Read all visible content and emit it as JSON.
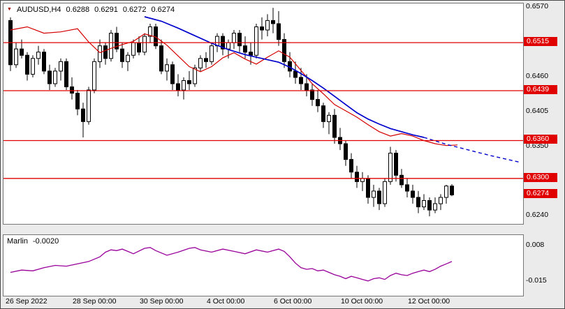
{
  "header": {
    "symbol": "AUDUSD,H4",
    "open": "0.6288",
    "high": "0.6291",
    "low": "0.6272",
    "close": "0.6274"
  },
  "indicator_label": {
    "name": "Marlin",
    "value": "-0.0020"
  },
  "colors": {
    "level_line": "#e00000",
    "ma_fast": "#d40000",
    "ma_slow": "#0000cd",
    "indicator_line": "#990099",
    "candle_up": "#ffffff",
    "candle_down": "#000000",
    "candle_outline": "#000000",
    "axis_box_bg": "#e00000",
    "axis_box_text": "#ffffff",
    "marker": "#a00000"
  },
  "chart_data": {
    "type": "candlestick",
    "symbol": "AUDUSD",
    "timeframe": "H4",
    "current_bar": {
      "open": 0.6288,
      "high": 0.6291,
      "low": 0.6272,
      "close": 0.6274
    },
    "y_axis": {
      "min": 0.6228,
      "max": 0.6577,
      "plain_ticks": [
        {
          "price": 0.657,
          "label": "0.6570"
        },
        {
          "price": 0.646,
          "label": "0.6460"
        },
        {
          "price": 0.6405,
          "label": "0.6405"
        },
        {
          "price": 0.635,
          "label": "0.6350"
        },
        {
          "price": 0.624,
          "label": "0.6240"
        }
      ]
    },
    "levels": [
      {
        "price": 0.6515,
        "label": "0.6515"
      },
      {
        "price": 0.6439,
        "label": "0.6439"
      },
      {
        "price": 0.636,
        "label": "0.6360"
      },
      {
        "price": 0.63,
        "label": "0.6300"
      }
    ],
    "bid": {
      "price": 0.6274,
      "label": "0.6274"
    },
    "x_labels": [
      {
        "i": 0,
        "label": "26 Sep 2022"
      },
      {
        "i": 12,
        "label": "28 Sep 00:00"
      },
      {
        "i": 24,
        "label": "30 Sep 00:00"
      },
      {
        "i": 36,
        "label": "4 Oct 00:00"
      },
      {
        "i": 48,
        "label": "6 Oct 00:00"
      },
      {
        "i": 60,
        "label": "10 Oct 00:00"
      },
      {
        "i": 72,
        "label": "12 Oct 00:00"
      }
    ],
    "candles": [
      [
        0.655,
        0.6555,
        0.647,
        0.648
      ],
      [
        0.648,
        0.6515,
        0.6475,
        0.6505
      ],
      [
        0.6505,
        0.652,
        0.649,
        0.6495
      ],
      [
        0.6495,
        0.65,
        0.6455,
        0.6465
      ],
      [
        0.6465,
        0.6495,
        0.646,
        0.649
      ],
      [
        0.649,
        0.651,
        0.648,
        0.65
      ],
      [
        0.65,
        0.6505,
        0.6465,
        0.647
      ],
      [
        0.647,
        0.648,
        0.644,
        0.645
      ],
      [
        0.645,
        0.6475,
        0.6445,
        0.647
      ],
      [
        0.647,
        0.649,
        0.6455,
        0.6485
      ],
      [
        0.6485,
        0.649,
        0.644,
        0.6445
      ],
      [
        0.6445,
        0.646,
        0.6425,
        0.6435
      ],
      [
        0.6435,
        0.644,
        0.64,
        0.641
      ],
      [
        0.641,
        0.642,
        0.6365,
        0.639
      ],
      [
        0.639,
        0.6445,
        0.6385,
        0.644
      ],
      [
        0.644,
        0.649,
        0.6435,
        0.6485
      ],
      [
        0.6485,
        0.652,
        0.6475,
        0.651
      ],
      [
        0.651,
        0.6515,
        0.648,
        0.649
      ],
      [
        0.649,
        0.6535,
        0.6485,
        0.653
      ],
      [
        0.653,
        0.654,
        0.65,
        0.6505
      ],
      [
        0.6505,
        0.6515,
        0.6475,
        0.6485
      ],
      [
        0.6485,
        0.65,
        0.647,
        0.6495
      ],
      [
        0.6495,
        0.652,
        0.649,
        0.6515
      ],
      [
        0.6515,
        0.6525,
        0.6495,
        0.65
      ],
      [
        0.65,
        0.653,
        0.6495,
        0.6525
      ],
      [
        0.6525,
        0.6545,
        0.6515,
        0.654
      ],
      [
        0.654,
        0.6545,
        0.6505,
        0.651
      ],
      [
        0.651,
        0.652,
        0.6465,
        0.647
      ],
      [
        0.647,
        0.649,
        0.6455,
        0.648
      ],
      [
        0.648,
        0.6485,
        0.644,
        0.645
      ],
      [
        0.645,
        0.6465,
        0.643,
        0.644
      ],
      [
        0.644,
        0.646,
        0.6425,
        0.6455
      ],
      [
        0.6455,
        0.647,
        0.644,
        0.645
      ],
      [
        0.645,
        0.648,
        0.6445,
        0.6475
      ],
      [
        0.6475,
        0.6495,
        0.647,
        0.649
      ],
      [
        0.649,
        0.65,
        0.6475,
        0.6485
      ],
      [
        0.6485,
        0.6515,
        0.648,
        0.651
      ],
      [
        0.651,
        0.653,
        0.65,
        0.6525
      ],
      [
        0.6525,
        0.653,
        0.6495,
        0.6505
      ],
      [
        0.6505,
        0.652,
        0.649,
        0.6515
      ],
      [
        0.6515,
        0.6535,
        0.6505,
        0.653
      ],
      [
        0.653,
        0.6535,
        0.65,
        0.651
      ],
      [
        0.651,
        0.6525,
        0.649,
        0.65
      ],
      [
        0.65,
        0.6515,
        0.648,
        0.6495
      ],
      [
        0.6495,
        0.6545,
        0.649,
        0.654
      ],
      [
        0.654,
        0.6555,
        0.652,
        0.6535
      ],
      [
        0.6535,
        0.656,
        0.6525,
        0.655
      ],
      [
        0.655,
        0.657,
        0.653,
        0.6545
      ],
      [
        0.6545,
        0.6565,
        0.651,
        0.652
      ],
      [
        0.652,
        0.653,
        0.6475,
        0.6485
      ],
      [
        0.6485,
        0.65,
        0.646,
        0.647
      ],
      [
        0.647,
        0.6485,
        0.645,
        0.646
      ],
      [
        0.646,
        0.6475,
        0.644,
        0.645
      ],
      [
        0.645,
        0.6465,
        0.643,
        0.644
      ],
      [
        0.644,
        0.645,
        0.6415,
        0.6425
      ],
      [
        0.6425,
        0.644,
        0.6405,
        0.6415
      ],
      [
        0.6415,
        0.642,
        0.638,
        0.639
      ],
      [
        0.639,
        0.6405,
        0.637,
        0.64
      ],
      [
        0.64,
        0.641,
        0.6355,
        0.6365
      ],
      [
        0.6365,
        0.638,
        0.6345,
        0.6355
      ],
      [
        0.6355,
        0.636,
        0.632,
        0.633
      ],
      [
        0.633,
        0.634,
        0.63,
        0.631
      ],
      [
        0.631,
        0.632,
        0.6285,
        0.6295
      ],
      [
        0.6295,
        0.631,
        0.628,
        0.63
      ],
      [
        0.63,
        0.6305,
        0.626,
        0.627
      ],
      [
        0.627,
        0.629,
        0.6255,
        0.628
      ],
      [
        0.628,
        0.6285,
        0.625,
        0.626
      ],
      [
        0.626,
        0.63,
        0.6255,
        0.6295
      ],
      [
        0.6295,
        0.635,
        0.629,
        0.634
      ],
      [
        0.634,
        0.6345,
        0.6295,
        0.6305
      ],
      [
        0.6305,
        0.6315,
        0.6285,
        0.629
      ],
      [
        0.629,
        0.63,
        0.627,
        0.628
      ],
      [
        0.628,
        0.629,
        0.626,
        0.627
      ],
      [
        0.627,
        0.628,
        0.6245,
        0.6255
      ],
      [
        0.6255,
        0.6275,
        0.625,
        0.6265
      ],
      [
        0.6265,
        0.627,
        0.624,
        0.625
      ],
      [
        0.625,
        0.627,
        0.6245,
        0.626
      ],
      [
        0.626,
        0.6275,
        0.625,
        0.627
      ],
      [
        0.627,
        0.629,
        0.626,
        0.6288
      ],
      [
        0.6288,
        0.6291,
        0.6272,
        0.6274
      ]
    ],
    "ma_slow_blue": [
      [
        24,
        0.6556
      ],
      [
        27,
        0.6549
      ],
      [
        30,
        0.6538
      ],
      [
        33,
        0.6526
      ],
      [
        36,
        0.6514
      ],
      [
        39,
        0.6504
      ],
      [
        42,
        0.6496
      ],
      [
        45,
        0.649
      ],
      [
        48,
        0.6484
      ],
      [
        50,
        0.6476
      ],
      [
        52,
        0.6466
      ],
      [
        54,
        0.6455
      ],
      [
        56,
        0.6443
      ],
      [
        58,
        0.643
      ],
      [
        60,
        0.6417
      ],
      [
        62,
        0.6404
      ],
      [
        64,
        0.6394
      ],
      [
        66,
        0.6386
      ],
      [
        68,
        0.6379
      ],
      [
        70,
        0.6374
      ],
      [
        72,
        0.6369
      ],
      [
        74,
        0.6365
      ]
    ],
    "ma_slow_blue_projection": [
      [
        74,
        0.6365
      ],
      [
        78,
        0.6354
      ],
      [
        82,
        0.6345
      ],
      [
        86,
        0.6336
      ],
      [
        91,
        0.6326
      ]
    ],
    "ma_fast_red": [
      [
        0,
        0.6535
      ],
      [
        3,
        0.654
      ],
      [
        6,
        0.653
      ],
      [
        9,
        0.6532
      ],
      [
        12,
        0.6537
      ],
      [
        14,
        0.6516
      ],
      [
        16,
        0.6499
      ],
      [
        18,
        0.6506
      ],
      [
        20,
        0.6512
      ],
      [
        22,
        0.6517
      ],
      [
        24,
        0.6529
      ],
      [
        26,
        0.6524
      ],
      [
        28,
        0.6511
      ],
      [
        30,
        0.6494
      ],
      [
        32,
        0.6477
      ],
      [
        34,
        0.6469
      ],
      [
        36,
        0.6477
      ],
      [
        38,
        0.6491
      ],
      [
        40,
        0.6499
      ],
      [
        42,
        0.6489
      ],
      [
        44,
        0.6481
      ],
      [
        46,
        0.6492
      ],
      [
        48,
        0.6502
      ],
      [
        50,
        0.6492
      ],
      [
        52,
        0.6471
      ],
      [
        54,
        0.645
      ],
      [
        56,
        0.6434
      ],
      [
        58,
        0.6417
      ],
      [
        60,
        0.6407
      ],
      [
        62,
        0.6397
      ],
      [
        64,
        0.6385
      ],
      [
        66,
        0.6374
      ],
      [
        68,
        0.6367
      ],
      [
        70,
        0.6371
      ],
      [
        72,
        0.6367
      ],
      [
        74,
        0.636
      ],
      [
        76,
        0.6355
      ],
      [
        78,
        0.6352
      ],
      [
        80,
        0.6353
      ]
    ],
    "indicator": {
      "name": "Marlin",
      "current": -0.002,
      "axis": {
        "min": -0.024,
        "max": 0.015
      },
      "ticks": [
        {
          "value": 0.008,
          "label": "0.008"
        },
        {
          "value": -0.015,
          "label": "-0.015"
        }
      ],
      "points": [
        [
          0,
          -0.009
        ],
        [
          2,
          -0.0075
        ],
        [
          4,
          -0.008
        ],
        [
          6,
          -0.006
        ],
        [
          8,
          -0.0045
        ],
        [
          10,
          -0.005
        ],
        [
          12,
          -0.0035
        ],
        [
          14,
          -0.002
        ],
        [
          16,
          0.001
        ],
        [
          17,
          0.004
        ],
        [
          18,
          0.0055
        ],
        [
          19,
          0.005
        ],
        [
          20,
          0.006
        ],
        [
          21,
          0.0045
        ],
        [
          22,
          0.003
        ],
        [
          24,
          0.0065
        ],
        [
          25,
          0.007
        ],
        [
          26,
          0.005
        ],
        [
          28,
          0.002
        ],
        [
          30,
          0.004
        ],
        [
          32,
          0.0065
        ],
        [
          33,
          0.007
        ],
        [
          34,
          0.0055
        ],
        [
          36,
          0.004
        ],
        [
          38,
          0.006
        ],
        [
          40,
          0.0045
        ],
        [
          42,
          0.003
        ],
        [
          44,
          0.0055
        ],
        [
          46,
          0.004
        ],
        [
          48,
          0.006
        ],
        [
          49,
          0.0045
        ],
        [
          50,
          0.001
        ],
        [
          51,
          -0.003
        ],
        [
          52,
          -0.006
        ],
        [
          53,
          -0.007
        ],
        [
          54,
          -0.0065
        ],
        [
          55,
          -0.008
        ],
        [
          56,
          -0.0075
        ],
        [
          57,
          -0.009
        ],
        [
          58,
          -0.0105
        ],
        [
          59,
          -0.0115
        ],
        [
          60,
          -0.013
        ],
        [
          61,
          -0.0115
        ],
        [
          62,
          -0.0125
        ],
        [
          63,
          -0.0135
        ],
        [
          64,
          -0.0145
        ],
        [
          65,
          -0.013
        ],
        [
          66,
          -0.0125
        ],
        [
          67,
          -0.0135
        ],
        [
          68,
          -0.011
        ],
        [
          69,
          -0.0095
        ],
        [
          70,
          -0.0105
        ],
        [
          71,
          -0.011
        ],
        [
          72,
          -0.0095
        ],
        [
          73,
          -0.0085
        ],
        [
          74,
          -0.0075
        ],
        [
          75,
          -0.0085
        ],
        [
          76,
          -0.007
        ],
        [
          77,
          -0.005
        ],
        [
          78,
          -0.0035
        ],
        [
          79,
          -0.002
        ]
      ]
    }
  }
}
